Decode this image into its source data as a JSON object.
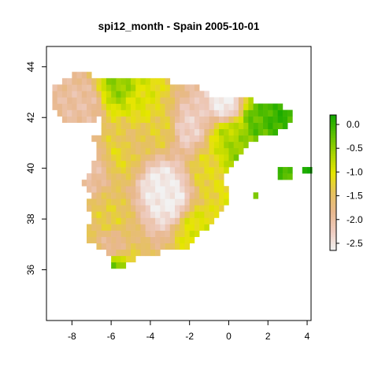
{
  "chart_data": {
    "type": "heatmap",
    "title": "spi12_month - Spain 2005-10-01",
    "xlabel": "",
    "ylabel": "",
    "xlim": [
      -9.3,
      4.2
    ],
    "ylim": [
      34.0,
      44.8
    ],
    "x_ticks": [
      -8,
      -6,
      -4,
      -2,
      0,
      2,
      4
    ],
    "x_tick_labels": [
      "-8",
      "-6",
      "-4",
      "-2",
      "0",
      "2",
      "4"
    ],
    "y_ticks": [
      36,
      38,
      40,
      42,
      44
    ],
    "y_tick_labels": [
      "36",
      "38",
      "40",
      "42",
      "44"
    ],
    "grid": false,
    "legend": {
      "type": "colorbar",
      "placement": "right",
      "range": [
        -2.65,
        0.2
      ],
      "ticks": [
        0.0,
        -0.5,
        -1.0,
        -1.5,
        -2.0,
        -2.5
      ],
      "tick_labels": [
        "0.0",
        "-0.5",
        "-1.0",
        "-1.5",
        "-2.0",
        "-2.5"
      ],
      "colors": [
        "#f2f2f2",
        "#eecbbf",
        "#e8b88e",
        "#e6c25e",
        "#e6e600",
        "#a8d400",
        "#5cc000",
        "#12a800"
      ]
    },
    "cell_size_deg": 0.25,
    "field_description_anchors": [
      {
        "lon": -3.5,
        "lat": 39.3,
        "value": -2.6
      },
      {
        "lon": -3.0,
        "lat": 38.8,
        "value": -2.6
      },
      {
        "lon": -0.2,
        "lat": 42.5,
        "value": -2.6
      },
      {
        "lon": -2.0,
        "lat": 41.6,
        "value": -2.3
      },
      {
        "lon": -7.5,
        "lat": 42.5,
        "value": -2.0
      },
      {
        "lon": -7.0,
        "lat": 40.0,
        "value": -2.0
      },
      {
        "lon": -6.0,
        "lat": 37.0,
        "value": -1.9
      },
      {
        "lon": -5.0,
        "lat": 41.0,
        "value": -1.5
      },
      {
        "lon": -6.0,
        "lat": 38.0,
        "value": -1.3
      },
      {
        "lon": -5.5,
        "lat": 40.6,
        "value": -1.2
      },
      {
        "lon": -3.5,
        "lat": 41.6,
        "value": -1.3
      },
      {
        "lon": -1.0,
        "lat": 40.0,
        "value": -1.2
      },
      {
        "lon": -1.7,
        "lat": 37.6,
        "value": -1.0
      },
      {
        "lon": -4.5,
        "lat": 42.7,
        "value": -1.0
      },
      {
        "lon": 0.0,
        "lat": 41.3,
        "value": -0.7
      },
      {
        "lon": 0.5,
        "lat": 40.7,
        "value": -0.5
      },
      {
        "lon": 1.5,
        "lat": 41.8,
        "value": -0.2
      },
      {
        "lon": 2.5,
        "lat": 42.0,
        "value": 0.0
      },
      {
        "lon": -5.5,
        "lat": 43.3,
        "value": -0.5
      },
      {
        "lon": -6.1,
        "lat": 36.0,
        "value": -0.1
      },
      {
        "lon": 3.0,
        "lat": 39.6,
        "value": -0.1
      },
      {
        "lon": 4.0,
        "lat": 39.9,
        "value": 0.2
      }
    ]
  }
}
